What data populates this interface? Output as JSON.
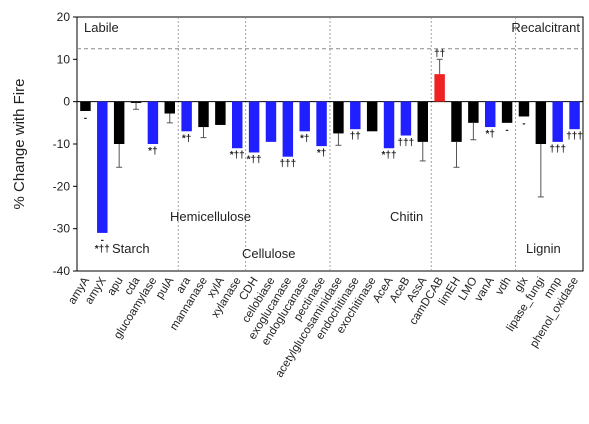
{
  "chart_data": {
    "type": "bar",
    "title": "",
    "xlabel": "",
    "ylabel": "% Change with Fire",
    "ylim": [
      -40,
      20
    ],
    "yticks": [
      -40,
      -30,
      -20,
      -10,
      0,
      10,
      20
    ],
    "grid": false,
    "reference_line": 12.5,
    "colors": {
      "black": "#000000",
      "blue": "#1f1fff",
      "red": "#ee2222",
      "error": "#555555",
      "guide": "#8a8a8a"
    },
    "categories": [
      "amyA",
      "amyX",
      "apu",
      "cda",
      "glucoamylase",
      "pulA",
      "ara",
      "mannanase",
      "xylA",
      "xylanase",
      "CDH",
      "cellobiase",
      "exoglucanase",
      "endoglucanase",
      "pectinase",
      "acetylglucosaminidase",
      "endochitinase",
      "exochitinase",
      "AceA",
      "AceB",
      "AssA",
      "camDCAB",
      "limEH",
      "LMO",
      "vanA",
      "vdh",
      "glx",
      "lipase_fungi",
      "mnp",
      "phenol_oxidase"
    ],
    "values": [
      -2.2,
      -31,
      -10,
      -0.3,
      -10,
      -2.8,
      -7,
      -6,
      -5.5,
      -11,
      -12,
      -9.5,
      -13,
      -7,
      -10.5,
      -7.5,
      -6.5,
      -7,
      -11,
      -8,
      -9.5,
      6.5,
      -9.5,
      -5,
      -6,
      -5,
      -3.5,
      -10,
      -9.5,
      -6.5
    ],
    "errors": [
      0,
      0,
      5.5,
      1.5,
      0,
      2.2,
      0,
      2.5,
      0,
      0,
      0,
      0,
      0,
      0,
      0,
      2.8,
      0,
      0,
      0,
      0,
      4.5,
      3.5,
      6,
      4,
      0,
      0,
      0,
      12.5,
      0,
      0
    ],
    "bar_colors": [
      "black",
      "blue",
      "black",
      "black",
      "blue",
      "black",
      "blue",
      "black",
      "black",
      "blue",
      "blue",
      "blue",
      "blue",
      "blue",
      "blue",
      "black",
      "blue",
      "black",
      "blue",
      "blue",
      "black",
      "red",
      "black",
      "black",
      "blue",
      "black",
      "black",
      "black",
      "blue",
      "blue"
    ],
    "significance": [
      "-",
      "-\n*††",
      "",
      "",
      "*†",
      "",
      "*†",
      "",
      "",
      "*††",
      "*††",
      "",
      "†††",
      "*†",
      "*†",
      "",
      "††",
      "",
      "*††",
      "†††",
      "",
      "††",
      "",
      "",
      "*†",
      "-",
      "-",
      "",
      "†††",
      "†††"
    ],
    "regions": [
      {
        "label": "Starch",
        "start": 0,
        "end": 5
      },
      {
        "label": "Hemicellulose",
        "start": 6,
        "end": 9
      },
      {
        "label": "Cellulose",
        "start": 10,
        "end": 14
      },
      {
        "label": "Chitin",
        "start": 15,
        "end": 20
      },
      {
        "label": "",
        "start": 21,
        "end": 25
      },
      {
        "label": "Lignin",
        "start": 26,
        "end": 29
      }
    ],
    "annotations": [
      "Labile",
      "Recalcitrant"
    ]
  }
}
